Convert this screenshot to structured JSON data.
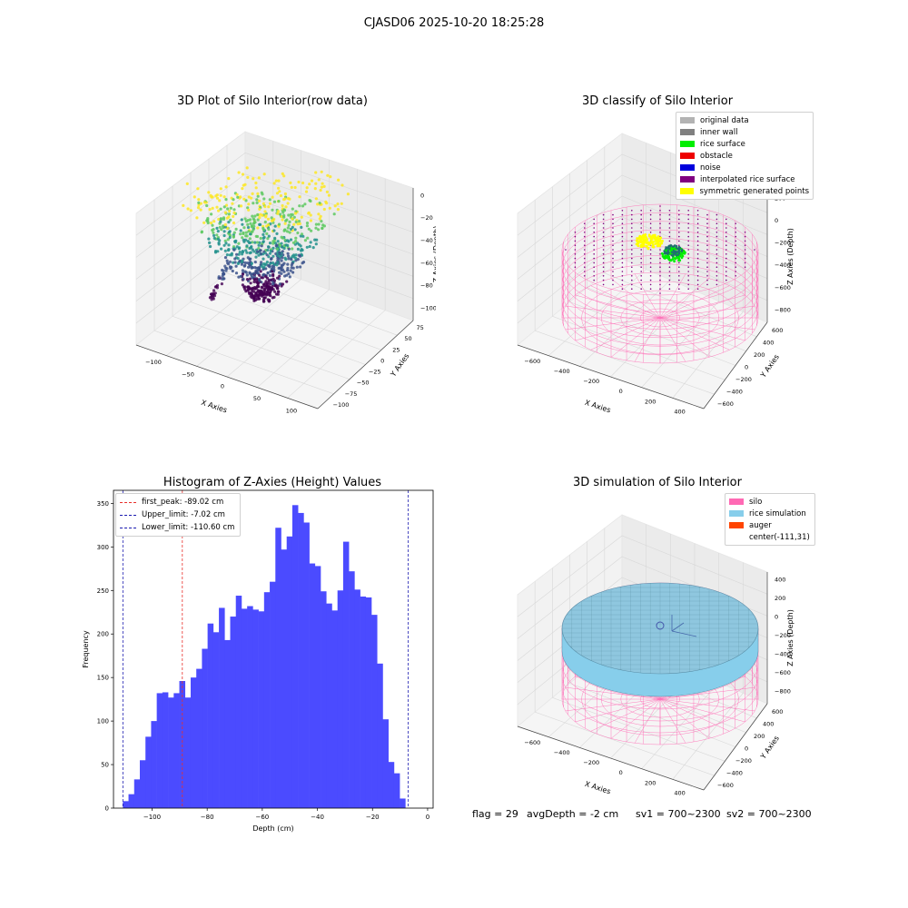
{
  "figure": {
    "suptitle": "CJASD06 2025-10-20 18:25:28",
    "bottom_line": {
      "flag": "flag = 29",
      "avg_depth": "avgDepth = -2 cm",
      "sv1": "sv1 = 700~2300",
      "sv2": "sv2 = 700~2300"
    }
  },
  "panel1": {
    "title": "3D Plot of Silo Interior(row data)",
    "xlabel": "X Axies",
    "ylabel": "Y Axies",
    "zlabel": "Z Axies (Depth)",
    "x_ticks": [
      "−100",
      "−50",
      "0",
      "50",
      "100"
    ],
    "y_ticks": [
      "−100",
      "−75",
      "−50",
      "−25",
      "0",
      "25",
      "50",
      "75"
    ],
    "z_ticks": [
      "0",
      "−20",
      "−40",
      "−60",
      "−80",
      "−100"
    ],
    "colormap": [
      "#440154",
      "#3b528b",
      "#21918c",
      "#5ec962",
      "#fde725"
    ]
  },
  "panel2": {
    "title": "3D classify of Silo Interior",
    "xlabel": "X Axies",
    "ylabel": "Y Axies",
    "zlabel": "Z Axies (Depth)",
    "x_ticks": [
      "−600",
      "−400",
      "−200",
      "0",
      "200",
      "400"
    ],
    "y_ticks": [
      "−600",
      "−400",
      "−200",
      "0",
      "200",
      "400",
      "600"
    ],
    "z_ticks": [
      "200",
      "0",
      "−200",
      "−400",
      "−600",
      "−800"
    ],
    "z_top_partial": "0",
    "legend": [
      {
        "label": "original data",
        "color": "#b3b3b3"
      },
      {
        "label": "inner wall",
        "color": "#808080"
      },
      {
        "label": "rice surface",
        "color": "#00ee00"
      },
      {
        "label": "obstacle",
        "color": "#ee0000"
      },
      {
        "label": "noise",
        "color": "#0000dd"
      },
      {
        "label": "interpolated rice surface",
        "color": "#800080"
      },
      {
        "label": "symmetric generated points",
        "color": "#ffff00"
      }
    ]
  },
  "panel3": {
    "title": "Histogram of Z-Axies (Height) Values",
    "xlabel": "Depth (cm)",
    "ylabel": "Frequency",
    "x_ticks": [
      "−100",
      "−80",
      "−60",
      "−40",
      "−20",
      "0"
    ],
    "y_ticks": [
      "0",
      "50",
      "100",
      "150",
      "200",
      "250",
      "300",
      "350"
    ],
    "legend": [
      {
        "label": "first_peak: -89.02 cm",
        "color": "#e8302a"
      },
      {
        "label": "Upper_limit: -7.02 cm",
        "color": "#1a1ab0"
      },
      {
        "label": "Lower_limit: -110.60 cm",
        "color": "#1a1ab0"
      }
    ],
    "bar_color": "#4b4bff"
  },
  "panel4": {
    "title": "3D simulation of Silo Interior",
    "xlabel": "X Axies",
    "ylabel": "Y Axies",
    "zlabel": "Z Axies (Depth)",
    "x_ticks": [
      "−600",
      "−400",
      "−200",
      "0",
      "200",
      "400"
    ],
    "y_ticks": [
      "−600",
      "−400",
      "−200",
      "0",
      "200",
      "400",
      "600"
    ],
    "z_ticks": [
      "400",
      "200",
      "0",
      "−200",
      "−400",
      "−600",
      "−800"
    ],
    "legend": [
      {
        "label": "silo",
        "color": "#ff69b4"
      },
      {
        "label": "rice simulation",
        "color": "#87ceeb"
      },
      {
        "label": "auger",
        "color": "#ff4500"
      },
      {
        "label": "center(-111,31)",
        "color": ""
      }
    ]
  },
  "chart_data": [
    {
      "type": "histogram",
      "title": "Histogram of Z-Axies (Height) Values",
      "xlabel": "Depth (cm)",
      "ylabel": "Frequency",
      "xlim": [
        -114,
        2
      ],
      "ylim": [
        0,
        365
      ],
      "bin_start": -110.6,
      "bin_width": 2.05,
      "values": [
        8,
        16,
        33,
        55,
        82,
        100,
        132,
        133,
        127,
        132,
        146,
        127,
        150,
        160,
        183,
        212,
        202,
        230,
        193,
        220,
        244,
        229,
        232,
        228,
        226,
        248,
        260,
        322,
        297,
        312,
        348,
        339,
        328,
        281,
        278,
        249,
        235,
        227,
        250,
        306,
        272,
        251,
        243,
        242,
        222,
        166,
        102,
        53,
        40,
        11
      ],
      "vlines": [
        {
          "name": "first_peak",
          "x": -89.02
        },
        {
          "name": "Upper_limit",
          "x": -7.02
        },
        {
          "name": "Lower_limit",
          "x": -110.6
        }
      ]
    },
    {
      "type": "scatter",
      "title": "3D Plot of Silo Interior(row data)",
      "xlim": [
        -100,
        100
      ],
      "ylim": [
        -100,
        75
      ],
      "zlim": [
        -110,
        0
      ]
    },
    {
      "type": "scatter",
      "title": "3D classify of Silo Interior",
      "xlim": [
        -600,
        400
      ],
      "ylim": [
        -600,
        600
      ],
      "zlim": [
        -800,
        200
      ]
    },
    {
      "type": "scatter",
      "title": "3D simulation of Silo Interior",
      "xlim": [
        -600,
        400
      ],
      "ylim": [
        -600,
        600
      ],
      "zlim": [
        -800,
        400
      ]
    }
  ]
}
